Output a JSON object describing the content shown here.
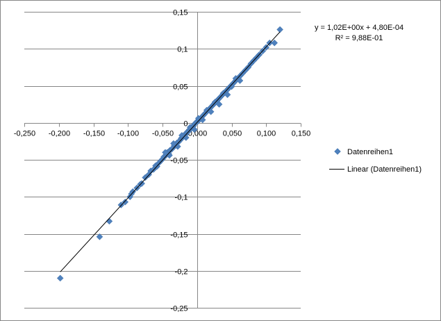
{
  "chart_data": {
    "type": "scatter",
    "title": "",
    "xlabel": "",
    "ylabel": "",
    "xlim": [
      -0.25,
      0.15
    ],
    "ylim": [
      -0.25,
      0.15
    ],
    "x_ticks": [
      "-0,250",
      "-0,200",
      "-0,150",
      "-0,100",
      "-0,050",
      "0,000",
      "0,050",
      "0,100",
      "0,150"
    ],
    "y_ticks": [
      "0,15",
      "0,1",
      "0,05",
      "0",
      "-0,05",
      "-0,1",
      "-0,15",
      "-0,2",
      "-0,25"
    ],
    "grid": "horizontal",
    "legend_position": "right",
    "colors": {
      "series": "#4F81BD",
      "trendline": "#000000",
      "grid": "#868686",
      "border": "#868686"
    },
    "series": [
      {
        "name": "Datenreihen1",
        "marker": "diamond",
        "x": [
          -0.198,
          -0.141,
          -0.127,
          -0.11,
          -0.104,
          -0.097,
          -0.093,
          -0.095,
          -0.087,
          -0.082,
          -0.08,
          -0.075,
          -0.07,
          -0.067,
          -0.063,
          -0.06,
          -0.058,
          -0.055,
          -0.052,
          -0.05,
          -0.048,
          -0.045,
          -0.043,
          -0.041,
          -0.039,
          -0.037,
          -0.035,
          -0.033,
          -0.031,
          -0.029,
          -0.027,
          -0.025,
          -0.023,
          -0.021,
          -0.019,
          -0.017,
          -0.015,
          -0.013,
          -0.011,
          -0.009,
          -0.007,
          -0.005,
          -0.003,
          -0.001,
          0.001,
          0.003,
          0.005,
          0.007,
          0.009,
          0.011,
          0.013,
          0.015,
          0.017,
          0.019,
          0.021,
          0.023,
          0.025,
          0.027,
          0.029,
          0.031,
          0.033,
          0.035,
          0.037,
          0.039,
          0.041,
          0.043,
          0.045,
          0.047,
          0.049,
          0.051,
          0.053,
          0.055,
          0.057,
          0.06,
          0.063,
          0.066,
          0.07,
          0.074,
          0.078,
          0.082,
          0.086,
          0.09,
          0.095,
          0.1,
          0.105,
          0.112,
          0.12,
          -0.046,
          -0.04,
          -0.034,
          -0.028,
          -0.022,
          -0.016,
          -0.01,
          -0.004,
          0.002,
          0.008,
          0.014,
          0.02,
          0.026,
          0.032,
          0.038,
          0.044,
          0.05,
          0.056,
          0.062
        ],
        "y": [
          -0.21,
          -0.154,
          -0.133,
          -0.111,
          -0.107,
          -0.1,
          -0.093,
          -0.096,
          -0.088,
          -0.083,
          -0.082,
          -0.074,
          -0.07,
          -0.065,
          -0.063,
          -0.058,
          -0.059,
          -0.054,
          -0.051,
          -0.049,
          -0.046,
          -0.044,
          -0.04,
          -0.042,
          -0.037,
          -0.036,
          -0.034,
          -0.031,
          -0.03,
          -0.027,
          -0.026,
          -0.024,
          -0.021,
          -0.02,
          -0.017,
          -0.016,
          -0.013,
          -0.012,
          -0.009,
          -0.008,
          -0.005,
          -0.004,
          -0.001,
          0.001,
          0.002,
          0.004,
          0.006,
          0.008,
          0.01,
          0.012,
          0.014,
          0.016,
          0.018,
          0.02,
          0.022,
          0.024,
          0.026,
          0.028,
          0.03,
          0.032,
          0.034,
          0.036,
          0.038,
          0.04,
          0.042,
          0.044,
          0.046,
          0.048,
          0.05,
          0.052,
          0.054,
          0.056,
          0.058,
          0.061,
          0.064,
          0.067,
          0.071,
          0.075,
          0.08,
          0.084,
          0.088,
          0.092,
          0.097,
          0.102,
          0.108,
          0.108,
          0.126,
          -0.04,
          -0.044,
          -0.028,
          -0.032,
          -0.017,
          -0.02,
          -0.006,
          -0.009,
          0.006,
          0.004,
          0.017,
          0.015,
          0.028,
          0.025,
          0.04,
          0.038,
          0.049,
          0.06,
          0.057
        ]
      }
    ],
    "trendline": {
      "name": "Linear (Datenreihen1)",
      "type": "linear",
      "slope": 1.02,
      "intercept": 0.00048,
      "x_range": [
        -0.198,
        0.12
      ]
    },
    "annotations": {
      "equation": "y = 1,02E+00x + 4,80E-04",
      "r_squared": "R² = 9,88E-01"
    }
  }
}
